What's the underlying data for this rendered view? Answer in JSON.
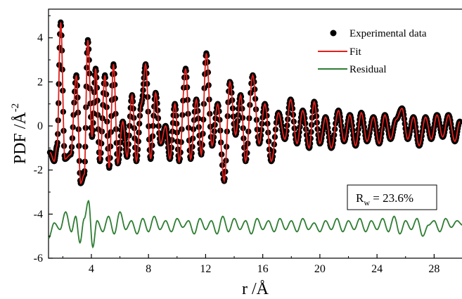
{
  "chart_data": {
    "type": "line",
    "xlabel": "r /Å",
    "ylabel_main": "PDF /Å",
    "ylabel_sup": "-2",
    "xlim": [
      1,
      30
    ],
    "ylim": [
      -6,
      5.3
    ],
    "x_ticks": [
      4,
      8,
      12,
      16,
      20,
      24,
      28
    ],
    "x_tick_labels": [
      "4",
      "8",
      "12",
      "16",
      "20",
      "24",
      "28"
    ],
    "y_ticks": [
      -6,
      -4,
      -2,
      0,
      2,
      4
    ],
    "y_tick_labels": [
      "-6",
      "-4",
      "-2",
      "0",
      "2",
      "4"
    ],
    "grid": false,
    "legend_position": "top-right",
    "legend": [
      {
        "name": "Experimental data",
        "kind": "marker",
        "color": "#000000"
      },
      {
        "name": "Fit",
        "kind": "line",
        "color": "#e0201b"
      },
      {
        "name": "Residual",
        "kind": "line",
        "color": "#2e7d32"
      }
    ],
    "annotation": {
      "R": "R",
      "sub": "w",
      "text": " = 23.6%"
    },
    "peaks": [
      {
        "x": 1.1,
        "y": -1.2
      },
      {
        "x": 1.4,
        "y": -1.6
      },
      {
        "x": 1.6,
        "y": -0.9
      },
      {
        "x": 1.85,
        "y": 4.7
      },
      {
        "x": 2.15,
        "y": -1.5
      },
      {
        "x": 2.55,
        "y": -1.3
      },
      {
        "x": 2.95,
        "y": 2.3
      },
      {
        "x": 3.25,
        "y": -2.6
      },
      {
        "x": 3.5,
        "y": -2.2
      },
      {
        "x": 3.75,
        "y": 3.9
      },
      {
        "x": 4.05,
        "y": -0.5
      },
      {
        "x": 4.3,
        "y": 2.6
      },
      {
        "x": 4.6,
        "y": -1.6
      },
      {
        "x": 4.95,
        "y": 2.3
      },
      {
        "x": 5.25,
        "y": -1.9
      },
      {
        "x": 5.55,
        "y": 2.8
      },
      {
        "x": 5.85,
        "y": -1.7
      },
      {
        "x": 6.2,
        "y": 0.2
      },
      {
        "x": 6.5,
        "y": -1.4
      },
      {
        "x": 6.85,
        "y": 1.4
      },
      {
        "x": 7.15,
        "y": -1.6
      },
      {
        "x": 7.5,
        "y": 1.0
      },
      {
        "x": 7.8,
        "y": 2.8
      },
      {
        "x": 8.15,
        "y": -1.5
      },
      {
        "x": 8.5,
        "y": 1.5
      },
      {
        "x": 8.85,
        "y": -0.8
      },
      {
        "x": 9.2,
        "y": 0.0
      },
      {
        "x": 9.5,
        "y": -1.5
      },
      {
        "x": 9.85,
        "y": 1.0
      },
      {
        "x": 10.15,
        "y": -1.6
      },
      {
        "x": 10.6,
        "y": 2.6
      },
      {
        "x": 10.95,
        "y": -1.5
      },
      {
        "x": 11.35,
        "y": 1.2
      },
      {
        "x": 11.7,
        "y": -1.3
      },
      {
        "x": 12.05,
        "y": 3.3
      },
      {
        "x": 12.45,
        "y": -0.9
      },
      {
        "x": 12.85,
        "y": 1.0
      },
      {
        "x": 13.3,
        "y": -2.5
      },
      {
        "x": 13.7,
        "y": 2.0
      },
      {
        "x": 14.1,
        "y": -0.4
      },
      {
        "x": 14.45,
        "y": 1.4
      },
      {
        "x": 14.8,
        "y": -1.6
      },
      {
        "x": 15.3,
        "y": 2.3
      },
      {
        "x": 15.75,
        "y": -0.8
      },
      {
        "x": 16.15,
        "y": 1.0
      },
      {
        "x": 16.6,
        "y": -1.6
      },
      {
        "x": 17.1,
        "y": 0.6
      },
      {
        "x": 17.55,
        "y": -0.6
      },
      {
        "x": 17.95,
        "y": 1.2
      },
      {
        "x": 18.4,
        "y": -0.8
      },
      {
        "x": 18.8,
        "y": 0.7
      },
      {
        "x": 19.25,
        "y": -1.0
      },
      {
        "x": 19.6,
        "y": 1.1
      },
      {
        "x": 20.0,
        "y": -0.8
      },
      {
        "x": 20.4,
        "y": 0.4
      },
      {
        "x": 20.8,
        "y": -1.0
      },
      {
        "x": 21.3,
        "y": 0.7
      },
      {
        "x": 21.7,
        "y": -0.7
      },
      {
        "x": 22.1,
        "y": 0.5
      },
      {
        "x": 22.5,
        "y": -0.9
      },
      {
        "x": 22.9,
        "y": 0.6
      },
      {
        "x": 23.3,
        "y": -0.7
      },
      {
        "x": 23.75,
        "y": 0.4
      },
      {
        "x": 24.15,
        "y": -0.8
      },
      {
        "x": 24.55,
        "y": 0.5
      },
      {
        "x": 24.95,
        "y": -0.6
      },
      {
        "x": 25.35,
        "y": 0.3
      },
      {
        "x": 25.75,
        "y": 0.8
      },
      {
        "x": 26.15,
        "y": -0.6
      },
      {
        "x": 26.55,
        "y": 0.4
      },
      {
        "x": 26.95,
        "y": -0.9
      },
      {
        "x": 27.4,
        "y": 0.4
      },
      {
        "x": 27.8,
        "y": -0.6
      },
      {
        "x": 28.2,
        "y": 0.5
      },
      {
        "x": 28.6,
        "y": -0.5
      },
      {
        "x": 29.0,
        "y": 0.5
      },
      {
        "x": 29.45,
        "y": -0.7
      },
      {
        "x": 29.8,
        "y": 0.2
      }
    ],
    "residual": [
      {
        "x": 1.0,
        "y": -5.1
      },
      {
        "x": 1.4,
        "y": -4.4
      },
      {
        "x": 1.8,
        "y": -4.7
      },
      {
        "x": 2.2,
        "y": -3.9
      },
      {
        "x": 2.6,
        "y": -4.8
      },
      {
        "x": 2.9,
        "y": -4.1
      },
      {
        "x": 3.2,
        "y": -5.3
      },
      {
        "x": 3.5,
        "y": -4.2
      },
      {
        "x": 3.8,
        "y": -3.4
      },
      {
        "x": 4.1,
        "y": -5.5
      },
      {
        "x": 4.4,
        "y": -4.3
      },
      {
        "x": 4.8,
        "y": -4.8
      },
      {
        "x": 5.2,
        "y": -4.1
      },
      {
        "x": 5.6,
        "y": -4.9
      },
      {
        "x": 6.0,
        "y": -3.9
      },
      {
        "x": 6.4,
        "y": -4.7
      },
      {
        "x": 6.8,
        "y": -4.3
      },
      {
        "x": 7.2,
        "y": -4.9
      },
      {
        "x": 7.6,
        "y": -4.2
      },
      {
        "x": 8.0,
        "y": -4.8
      },
      {
        "x": 8.4,
        "y": -4.1
      },
      {
        "x": 8.8,
        "y": -4.7
      },
      {
        "x": 9.2,
        "y": -4.3
      },
      {
        "x": 9.6,
        "y": -4.8
      },
      {
        "x": 10.0,
        "y": -4.2
      },
      {
        "x": 10.4,
        "y": -4.6
      },
      {
        "x": 10.8,
        "y": -4.3
      },
      {
        "x": 11.2,
        "y": -4.9
      },
      {
        "x": 11.6,
        "y": -4.2
      },
      {
        "x": 12.0,
        "y": -4.7
      },
      {
        "x": 12.4,
        "y": -4.3
      },
      {
        "x": 12.8,
        "y": -4.9
      },
      {
        "x": 13.2,
        "y": -4.1
      },
      {
        "x": 13.6,
        "y": -4.8
      },
      {
        "x": 14.0,
        "y": -4.2
      },
      {
        "x": 14.4,
        "y": -4.7
      },
      {
        "x": 14.8,
        "y": -4.3
      },
      {
        "x": 15.2,
        "y": -4.9
      },
      {
        "x": 15.6,
        "y": -4.2
      },
      {
        "x": 16.0,
        "y": -4.7
      },
      {
        "x": 16.4,
        "y": -4.3
      },
      {
        "x": 16.8,
        "y": -4.8
      },
      {
        "x": 17.2,
        "y": -4.2
      },
      {
        "x": 17.6,
        "y": -4.7
      },
      {
        "x": 18.0,
        "y": -4.3
      },
      {
        "x": 18.4,
        "y": -4.8
      },
      {
        "x": 18.8,
        "y": -4.2
      },
      {
        "x": 19.2,
        "y": -4.7
      },
      {
        "x": 19.6,
        "y": -4.4
      },
      {
        "x": 20.0,
        "y": -4.8
      },
      {
        "x": 20.4,
        "y": -4.3
      },
      {
        "x": 20.8,
        "y": -4.7
      },
      {
        "x": 21.2,
        "y": -4.2
      },
      {
        "x": 21.6,
        "y": -4.8
      },
      {
        "x": 22.0,
        "y": -4.3
      },
      {
        "x": 22.4,
        "y": -4.7
      },
      {
        "x": 22.8,
        "y": -4.2
      },
      {
        "x": 23.2,
        "y": -4.8
      },
      {
        "x": 23.6,
        "y": -4.3
      },
      {
        "x": 24.0,
        "y": -4.7
      },
      {
        "x": 24.4,
        "y": -4.2
      },
      {
        "x": 24.8,
        "y": -4.8
      },
      {
        "x": 25.2,
        "y": -4.1
      },
      {
        "x": 25.6,
        "y": -4.9
      },
      {
        "x": 26.0,
        "y": -4.3
      },
      {
        "x": 26.4,
        "y": -4.7
      },
      {
        "x": 26.8,
        "y": -4.2
      },
      {
        "x": 27.2,
        "y": -5.0
      },
      {
        "x": 27.6,
        "y": -4.5
      },
      {
        "x": 28.0,
        "y": -4.3
      },
      {
        "x": 28.4,
        "y": -4.8
      },
      {
        "x": 28.8,
        "y": -4.2
      },
      {
        "x": 29.2,
        "y": -4.6
      },
      {
        "x": 29.6,
        "y": -4.3
      },
      {
        "x": 30.0,
        "y": -4.5
      }
    ]
  }
}
